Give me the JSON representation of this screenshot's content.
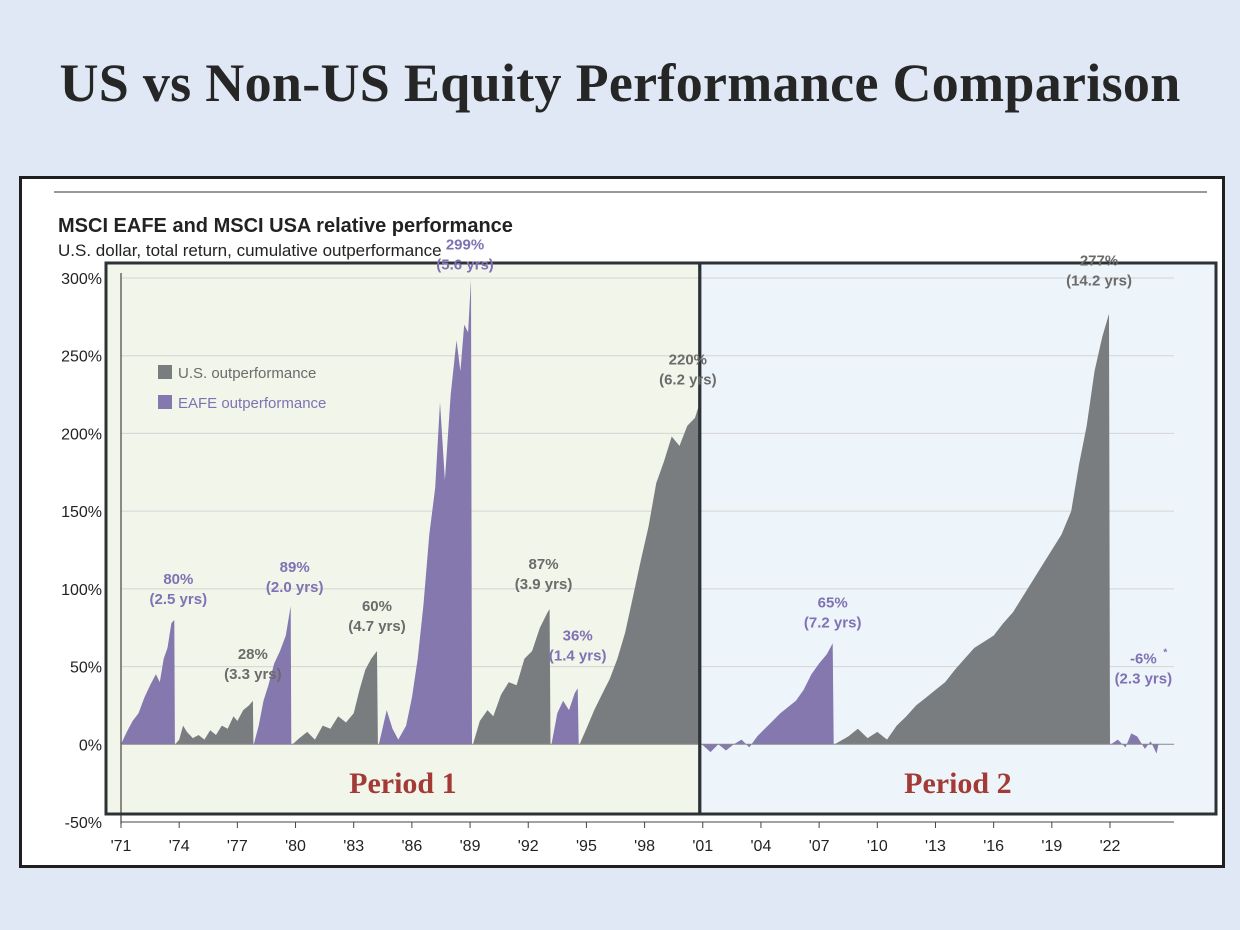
{
  "slide_title": "US vs Non-US Equity Performance Comparison",
  "colors": {
    "us": "#7a7d80",
    "eafe": "#8478ae",
    "eafe_label": "#7f72b4",
    "us_label": "#6b6b6b",
    "period_label": "#a23a36",
    "period1_bg": "#f2f5ea",
    "period2_bg": "#eef5fa",
    "period_border": "#2c3236"
  },
  "chart_data": {
    "type": "area",
    "title": "MSCI EAFE and MSCI USA relative performance",
    "subtitle": "U.S. dollar, total return, cumulative outperformance",
    "ylim": [
      -50,
      300
    ],
    "xlim": [
      1971,
      2025.3
    ],
    "y_ticks": [
      -50,
      0,
      50,
      100,
      150,
      200,
      250,
      300
    ],
    "y_tick_labels": [
      "-50%",
      "0%",
      "50%",
      "100%",
      "150%",
      "200%",
      "250%",
      "300%"
    ],
    "x_ticks": [
      1971,
      1974,
      1977,
      1980,
      1983,
      1986,
      1989,
      1992,
      1995,
      1998,
      2001,
      2004,
      2007,
      2010,
      2013,
      2016,
      2019,
      2022
    ],
    "x_tick_labels": [
      "'71",
      "'74",
      "'77",
      "'80",
      "'83",
      "'86",
      "'89",
      "'92",
      "'95",
      "'98",
      "'01",
      "'04",
      "'07",
      "'10",
      "'13",
      "'16",
      "'19",
      "'22"
    ],
    "grid": true,
    "legend": {
      "position": "top-left",
      "entries": [
        {
          "label": "U.S. outperformance",
          "series": "US"
        },
        {
          "label": "EAFE outperformance",
          "series": "EAFE"
        }
      ]
    },
    "segments": [
      {
        "series": "EAFE",
        "peak": 80,
        "duration": "2.5 yrs",
        "label_value": "80%",
        "label_duration": "(2.5 yrs)",
        "points": [
          [
            1971.0,
            0
          ],
          [
            1971.3,
            8
          ],
          [
            1971.6,
            15
          ],
          [
            1971.9,
            20
          ],
          [
            1972.2,
            30
          ],
          [
            1972.5,
            38
          ],
          [
            1972.8,
            45
          ],
          [
            1973.0,
            40
          ],
          [
            1973.2,
            55
          ],
          [
            1973.4,
            62
          ],
          [
            1973.6,
            78
          ],
          [
            1973.75,
            80
          ],
          [
            1973.78,
            0
          ]
        ]
      },
      {
        "series": "US",
        "peak": 28,
        "duration": "3.3 yrs",
        "label_value": "28%",
        "label_duration": "(3.3 yrs)",
        "points": [
          [
            1973.8,
            0
          ],
          [
            1974.0,
            3
          ],
          [
            1974.2,
            12
          ],
          [
            1974.4,
            8
          ],
          [
            1974.7,
            4
          ],
          [
            1975.0,
            6
          ],
          [
            1975.3,
            3
          ],
          [
            1975.6,
            9
          ],
          [
            1975.9,
            6
          ],
          [
            1976.2,
            12
          ],
          [
            1976.5,
            10
          ],
          [
            1976.8,
            18
          ],
          [
            1977.0,
            15
          ],
          [
            1977.3,
            22
          ],
          [
            1977.6,
            25
          ],
          [
            1977.8,
            28
          ],
          [
            1977.83,
            0
          ]
        ]
      },
      {
        "series": "EAFE",
        "peak": 89,
        "duration": "2.0 yrs",
        "label_value": "89%",
        "label_duration": "(2.0 yrs)",
        "points": [
          [
            1977.85,
            0
          ],
          [
            1978.1,
            12
          ],
          [
            1978.35,
            28
          ],
          [
            1978.6,
            38
          ],
          [
            1978.9,
            52
          ],
          [
            1979.2,
            60
          ],
          [
            1979.5,
            70
          ],
          [
            1979.75,
            89
          ],
          [
            1979.78,
            0
          ]
        ]
      },
      {
        "series": "US",
        "peak": 60,
        "duration": "4.7 yrs",
        "label_value": "60%",
        "label_duration": "(4.7 yrs)",
        "points": [
          [
            1979.85,
            0
          ],
          [
            1980.2,
            4
          ],
          [
            1980.6,
            8
          ],
          [
            1981.0,
            3
          ],
          [
            1981.4,
            12
          ],
          [
            1981.8,
            10
          ],
          [
            1982.2,
            18
          ],
          [
            1982.6,
            14
          ],
          [
            1983.0,
            20
          ],
          [
            1983.3,
            35
          ],
          [
            1983.6,
            48
          ],
          [
            1983.9,
            55
          ],
          [
            1984.2,
            60
          ],
          [
            1984.25,
            0
          ]
        ]
      },
      {
        "series": "EAFE",
        "peak": 299,
        "duration": "5.6 yrs",
        "label_value": "299%",
        "label_duration": "(5.6 yrs)",
        "points": [
          [
            1984.3,
            0
          ],
          [
            1984.7,
            22
          ],
          [
            1985.0,
            10
          ],
          [
            1985.3,
            3
          ],
          [
            1985.7,
            12
          ],
          [
            1986.0,
            30
          ],
          [
            1986.3,
            55
          ],
          [
            1986.6,
            90
          ],
          [
            1986.9,
            135
          ],
          [
            1987.2,
            165
          ],
          [
            1987.45,
            220
          ],
          [
            1987.7,
            170
          ],
          [
            1988.0,
            225
          ],
          [
            1988.3,
            260
          ],
          [
            1988.5,
            240
          ],
          [
            1988.7,
            270
          ],
          [
            1988.9,
            265
          ],
          [
            1989.05,
            299
          ],
          [
            1989.1,
            0
          ]
        ]
      },
      {
        "series": "US",
        "peak": 87,
        "duration": "3.9 yrs",
        "label_value": "87%",
        "label_duration": "(3.9 yrs)",
        "points": [
          [
            1989.15,
            0
          ],
          [
            1989.5,
            15
          ],
          [
            1989.9,
            22
          ],
          [
            1990.2,
            18
          ],
          [
            1990.6,
            32
          ],
          [
            1991.0,
            40
          ],
          [
            1991.4,
            38
          ],
          [
            1991.8,
            55
          ],
          [
            1992.2,
            60
          ],
          [
            1992.6,
            75
          ],
          [
            1993.0,
            85
          ],
          [
            1993.1,
            87
          ],
          [
            1993.15,
            0
          ]
        ]
      },
      {
        "series": "EAFE",
        "peak": 36,
        "duration": "1.4 yrs",
        "label_value": "36%",
        "label_duration": "(1.4 yrs)",
        "points": [
          [
            1993.2,
            0
          ],
          [
            1993.5,
            20
          ],
          [
            1993.8,
            28
          ],
          [
            1994.1,
            22
          ],
          [
            1994.4,
            33
          ],
          [
            1994.55,
            36
          ],
          [
            1994.6,
            0
          ]
        ]
      },
      {
        "series": "US",
        "peak": 220,
        "duration": "6.2 yrs",
        "label_value": "220%",
        "label_duration": "(6.2 yrs)",
        "points": [
          [
            1994.65,
            0
          ],
          [
            1995.0,
            10
          ],
          [
            1995.4,
            22
          ],
          [
            1995.8,
            32
          ],
          [
            1996.2,
            42
          ],
          [
            1996.6,
            55
          ],
          [
            1997.0,
            72
          ],
          [
            1997.4,
            95
          ],
          [
            1997.8,
            118
          ],
          [
            1998.2,
            140
          ],
          [
            1998.6,
            168
          ],
          [
            1999.0,
            182
          ],
          [
            1999.4,
            198
          ],
          [
            1999.8,
            192
          ],
          [
            2000.2,
            205
          ],
          [
            2000.6,
            210
          ],
          [
            2000.85,
            220
          ],
          [
            2000.9,
            0
          ]
        ]
      },
      {
        "series": "EAFE",
        "peak": 65,
        "duration": "7.2 yrs",
        "label_value": "65%",
        "label_duration": "(7.2 yrs)",
        "points": [
          [
            2000.95,
            0
          ],
          [
            2001.4,
            -5
          ],
          [
            2001.8,
            0
          ],
          [
            2002.2,
            -4
          ],
          [
            2002.6,
            0
          ],
          [
            2003.0,
            3
          ],
          [
            2003.4,
            -2
          ],
          [
            2003.8,
            5
          ],
          [
            2004.2,
            10
          ],
          [
            2004.6,
            15
          ],
          [
            2005.0,
            20
          ],
          [
            2005.4,
            24
          ],
          [
            2005.8,
            28
          ],
          [
            2006.2,
            35
          ],
          [
            2006.6,
            45
          ],
          [
            2007.0,
            52
          ],
          [
            2007.4,
            58
          ],
          [
            2007.7,
            65
          ],
          [
            2007.75,
            0
          ]
        ]
      },
      {
        "series": "US",
        "peak": 277,
        "duration": "14.2 yrs",
        "label_value": "277%",
        "label_duration": "(14.2 yrs)",
        "points": [
          [
            2007.8,
            0
          ],
          [
            2008.5,
            5
          ],
          [
            2009.0,
            10
          ],
          [
            2009.5,
            4
          ],
          [
            2010.0,
            8
          ],
          [
            2010.5,
            3
          ],
          [
            2011.0,
            12
          ],
          [
            2011.5,
            18
          ],
          [
            2012.0,
            25
          ],
          [
            2012.5,
            30
          ],
          [
            2013.0,
            35
          ],
          [
            2013.5,
            40
          ],
          [
            2014.0,
            48
          ],
          [
            2014.5,
            55
          ],
          [
            2015.0,
            62
          ],
          [
            2015.5,
            66
          ],
          [
            2016.0,
            70
          ],
          [
            2016.5,
            78
          ],
          [
            2017.0,
            85
          ],
          [
            2017.5,
            95
          ],
          [
            2018.0,
            105
          ],
          [
            2018.5,
            115
          ],
          [
            2019.0,
            125
          ],
          [
            2019.5,
            135
          ],
          [
            2020.0,
            150
          ],
          [
            2020.4,
            180
          ],
          [
            2020.8,
            205
          ],
          [
            2021.2,
            240
          ],
          [
            2021.6,
            262
          ],
          [
            2021.95,
            277
          ],
          [
            2022.0,
            0
          ]
        ]
      },
      {
        "series": "EAFE",
        "peak": -6,
        "duration": "2.3 yrs",
        "label_value": "-6%",
        "label_duration": "(2.3 yrs)",
        "label_note": "*",
        "points": [
          [
            2022.05,
            0
          ],
          [
            2022.4,
            3
          ],
          [
            2022.8,
            -2
          ],
          [
            2023.1,
            7
          ],
          [
            2023.4,
            5
          ],
          [
            2023.8,
            -3
          ],
          [
            2024.1,
            2
          ],
          [
            2024.4,
            -6
          ],
          [
            2024.5,
            0
          ]
        ]
      }
    ],
    "periods": [
      {
        "label": "Period 1",
        "from": 1971,
        "to": 2001
      },
      {
        "label": "Period 2",
        "from": 2001,
        "to": 2025.3
      }
    ]
  }
}
